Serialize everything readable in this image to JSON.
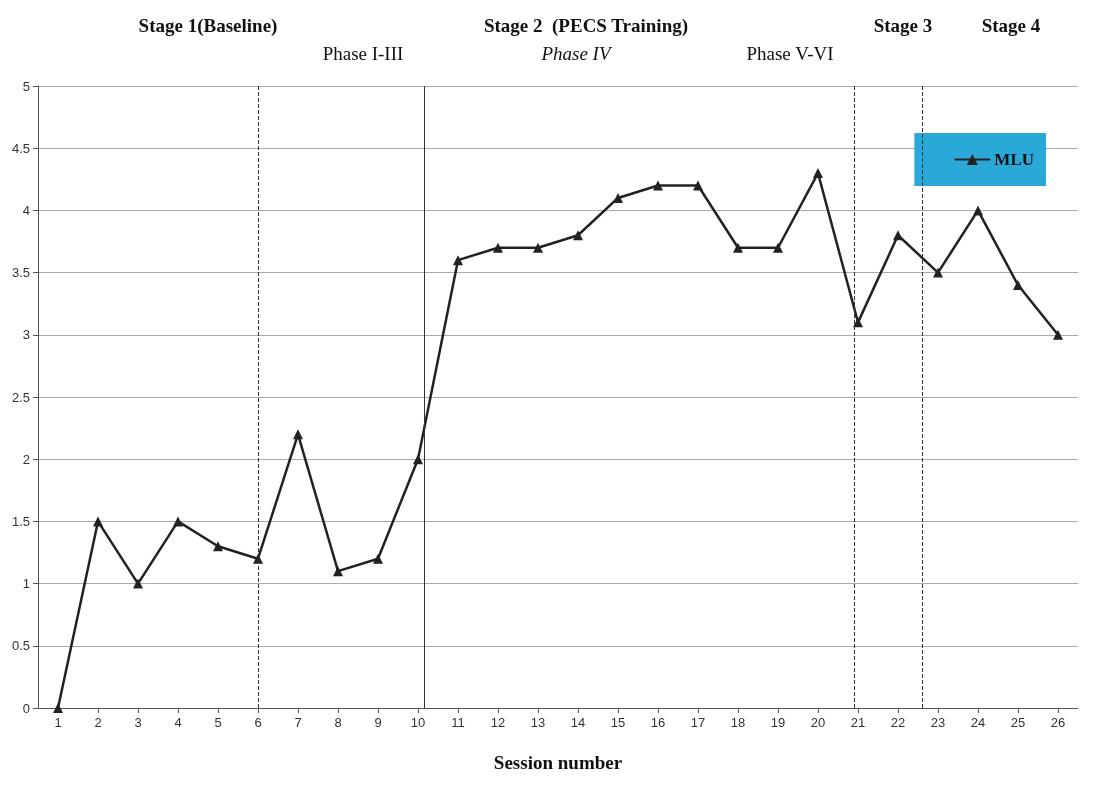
{
  "chart_data": {
    "type": "line",
    "xlabel": "Session number",
    "x": [
      1,
      2,
      3,
      4,
      5,
      6,
      7,
      8,
      9,
      10,
      11,
      12,
      13,
      14,
      15,
      16,
      17,
      18,
      19,
      20,
      21,
      22,
      23,
      24,
      25,
      26
    ],
    "series": [
      {
        "name": "MLU",
        "color": "#222222",
        "values": [
          0,
          1.5,
          1.0,
          1.5,
          1.3,
          1.2,
          2.2,
          1.1,
          1.2,
          2.0,
          3.6,
          3.7,
          3.7,
          3.8,
          4.1,
          4.2,
          4.2,
          3.7,
          3.7,
          4.3,
          3.1,
          3.8,
          3.5,
          4.0,
          3.4,
          3.0
        ]
      }
    ],
    "xlim": [
      0.5,
      26.5
    ],
    "xticks": [
      1,
      2,
      3,
      4,
      5,
      6,
      7,
      8,
      9,
      10,
      11,
      12,
      13,
      14,
      15,
      16,
      17,
      18,
      19,
      20,
      21,
      22,
      23,
      24,
      25,
      26
    ],
    "ylim": [
      0,
      5
    ],
    "yticks": [
      0,
      0.5,
      1,
      1.5,
      2,
      2.5,
      3,
      3.5,
      4,
      4.5,
      5
    ],
    "grid": "y",
    "legend": "top right",
    "marker": "triangle",
    "line_style": "solid",
    "ref_lines": [
      {
        "axis": "x",
        "value": 6,
        "line_style": "dashed"
      },
      {
        "axis": "x",
        "value": 10.15,
        "line_style": "solid"
      },
      {
        "axis": "x",
        "value": 20.9,
        "line_style": "dashed"
      },
      {
        "axis": "x",
        "value": 22.6,
        "line_style": "dashed"
      }
    ],
    "annotations": [
      "Stage 1(Baseline)",
      "Stage 2  (PECS Training)",
      "Stage 3",
      "Stage 4",
      "Phase I-III",
      "Phase IV",
      "Phase V-VI"
    ]
  }
}
